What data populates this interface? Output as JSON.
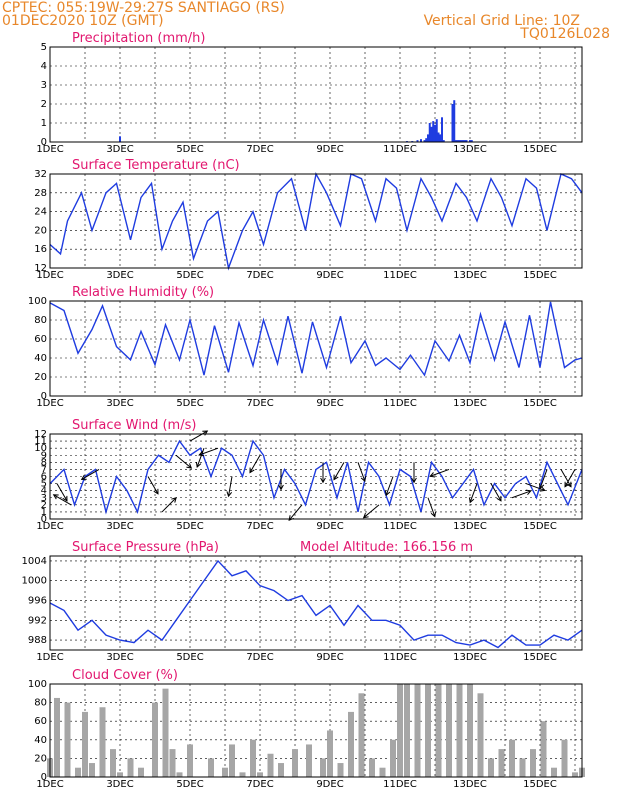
{
  "header": {
    "line1": "CPTEC:   055:19W-29:27S  SANTIAGO (RS)",
    "line2": "01DEC2020 10Z (GMT)",
    "grid_note": "Vertical Grid Line: 10Z",
    "code": "TQ0126L028"
  },
  "x_labels": [
    "1DEC",
    "3DEC",
    "5DEC",
    "7DEC",
    "9DEC",
    "11DEC",
    "13DEC",
    "15DEC"
  ],
  "colors": {
    "header": "#e8872a",
    "title": "#e2176f",
    "line": "#1f3ce0",
    "bar": "#1f3ce0",
    "cloud": "#a6a6a6",
    "arrow": "#000000"
  },
  "chart_data": [
    {
      "type": "bar",
      "title": "Precipitation (mm/h)",
      "ylim": [
        0,
        5
      ],
      "yticks": [
        0,
        1,
        2,
        3,
        4,
        5
      ],
      "x_unit": "days since 1DEC",
      "x": [
        2.0,
        10.2,
        10.35,
        10.5,
        10.6,
        10.7,
        10.75,
        10.8,
        10.85,
        10.9,
        10.95,
        11.0,
        11.05,
        11.1,
        11.15,
        11.2,
        11.25,
        11.5,
        11.55,
        11.6,
        11.65,
        11.7,
        11.75,
        11.8,
        11.85,
        11.9,
        12.0,
        12.05
      ],
      "values": [
        0.3,
        0.05,
        0.05,
        0.1,
        0.15,
        0.1,
        0.2,
        0.4,
        1.0,
        0.8,
        1.1,
        0.9,
        1.2,
        0.5,
        0.4,
        1.3,
        0.1,
        2.0,
        2.2,
        0.1,
        0.1,
        0.1,
        0.1,
        0.1,
        0.1,
        0.1,
        0.1,
        0.1
      ]
    },
    {
      "type": "line",
      "title": "Surface Temperature (nC)",
      "ylim": [
        12,
        32
      ],
      "yticks": [
        12,
        16,
        20,
        24,
        28,
        32
      ],
      "x": [
        0,
        0.3,
        0.5,
        0.9,
        1.2,
        1.6,
        1.9,
        2.3,
        2.6,
        2.9,
        3.2,
        3.5,
        3.8,
        4.1,
        4.5,
        4.8,
        5.1,
        5.5,
        5.8,
        6.1,
        6.5,
        6.9,
        7.3,
        7.6,
        7.9,
        8.3,
        8.6,
        8.9,
        9.3,
        9.6,
        9.9,
        10.2,
        10.6,
        10.9,
        11.2,
        11.6,
        11.9,
        12.2,
        12.6,
        12.9,
        13.2,
        13.6,
        13.9,
        14.2,
        14.6,
        14.9,
        15.2
      ],
      "values": [
        17,
        15,
        22,
        28,
        20,
        28,
        30,
        18,
        27,
        30,
        16,
        22,
        26,
        14,
        22,
        24,
        12,
        20,
        24,
        17,
        28,
        31,
        20,
        32,
        28,
        21,
        32,
        31,
        22,
        31,
        29,
        20,
        31,
        27,
        22,
        30,
        27,
        22,
        31,
        27,
        21,
        31,
        29,
        20,
        32,
        31,
        28
      ]
    },
    {
      "type": "line",
      "title": "Relative Humidity (%)",
      "ylim": [
        0,
        100
      ],
      "yticks": [
        0,
        20,
        40,
        60,
        80,
        100
      ],
      "x": [
        0,
        0.4,
        0.8,
        1.2,
        1.5,
        1.9,
        2.3,
        2.6,
        3.0,
        3.3,
        3.7,
        4.0,
        4.4,
        4.7,
        5.1,
        5.4,
        5.8,
        6.1,
        6.5,
        6.8,
        7.2,
        7.5,
        7.9,
        8.3,
        8.6,
        9.0,
        9.3,
        9.6,
        10.0,
        10.3,
        10.7,
        11.0,
        11.4,
        11.7,
        12.0,
        12.3,
        12.7,
        13.0,
        13.4,
        13.7,
        14.0,
        14.3,
        14.7,
        15.0,
        15.2
      ],
      "values": [
        98,
        90,
        45,
        70,
        95,
        52,
        38,
        68,
        33,
        75,
        38,
        80,
        22,
        74,
        25,
        77,
        32,
        80,
        34,
        84,
        24,
        78,
        30,
        84,
        35,
        58,
        32,
        40,
        28,
        43,
        22,
        58,
        37,
        64,
        35,
        86,
        38,
        78,
        30,
        85,
        30,
        99,
        30,
        38,
        40
      ]
    },
    {
      "type": "line",
      "title": "Surface Wind (m/s)",
      "ylim": [
        0,
        12
      ],
      "yticks": [
        0,
        1,
        2,
        3,
        4,
        5,
        6,
        7,
        8,
        9,
        10,
        11,
        12
      ],
      "x": [
        0,
        0.4,
        0.7,
        1.0,
        1.3,
        1.6,
        1.9,
        2.2,
        2.5,
        2.8,
        3.1,
        3.4,
        3.7,
        4.0,
        4.3,
        4.6,
        4.9,
        5.2,
        5.5,
        5.8,
        6.1,
        6.4,
        6.7,
        7.0,
        7.3,
        7.6,
        7.9,
        8.2,
        8.5,
        8.8,
        9.1,
        9.4,
        9.7,
        10.0,
        10.3,
        10.6,
        10.9,
        11.2,
        11.5,
        11.8,
        12.1,
        12.4,
        12.7,
        13.0,
        13.3,
        13.6,
        13.9,
        14.2,
        14.5,
        14.8,
        15.2
      ],
      "values": [
        5,
        7,
        2,
        6,
        7,
        1,
        6,
        4,
        1,
        7,
        9,
        8,
        11,
        9,
        10,
        6,
        10,
        9,
        6,
        11,
        9,
        3,
        7,
        5,
        2,
        7,
        8,
        3,
        8,
        1,
        8,
        6,
        2,
        7,
        6,
        1,
        8,
        6,
        3,
        5,
        7,
        2,
        5,
        3,
        5,
        6,
        3,
        8,
        5,
        2,
        7
      ],
      "wind_arrows": [
        {
          "x": 0.2,
          "dir": 300
        },
        {
          "x": 0.6,
          "dir": 150
        },
        {
          "x": 1.4,
          "dir": 210
        },
        {
          "x": 2.8,
          "dir": 300
        },
        {
          "x": 3.2,
          "dir": 45
        },
        {
          "x": 3.6,
          "dir": 320
        },
        {
          "x": 4.0,
          "dir": 30
        },
        {
          "x": 4.4,
          "dir": 250
        },
        {
          "x": 4.8,
          "dir": 200
        },
        {
          "x": 5.2,
          "dir": 260
        },
        {
          "x": 6.0,
          "dir": 240
        },
        {
          "x": 6.6,
          "dir": 270
        },
        {
          "x": 7.2,
          "dir": 230
        },
        {
          "x": 7.8,
          "dir": 270
        },
        {
          "x": 8.4,
          "dir": 240
        },
        {
          "x": 8.8,
          "dir": 290
        },
        {
          "x": 9.4,
          "dir": 220
        },
        {
          "x": 9.8,
          "dir": 250
        },
        {
          "x": 10.4,
          "dir": 270
        },
        {
          "x": 10.8,
          "dir": 290
        },
        {
          "x": 11.4,
          "dir": 200
        },
        {
          "x": 12.2,
          "dir": 250
        },
        {
          "x": 12.6,
          "dir": 300
        },
        {
          "x": 13.2,
          "dir": 20
        },
        {
          "x": 13.6,
          "dir": 340
        },
        {
          "x": 14.2,
          "dir": 250
        },
        {
          "x": 14.6,
          "dir": 300
        },
        {
          "x": 15.0,
          "dir": 240
        }
      ]
    },
    {
      "type": "line",
      "title": "Surface Pressure (hPa)",
      "annotation": "Model Altitude: 166.156  m",
      "ylim": [
        986,
        1005
      ],
      "yticks": [
        988,
        992,
        996,
        1000,
        1004
      ],
      "x": [
        0,
        0.4,
        0.8,
        1.2,
        1.6,
        2.0,
        2.4,
        2.8,
        3.2,
        3.6,
        4.0,
        4.4,
        4.8,
        5.2,
        5.6,
        6.0,
        6.4,
        6.8,
        7.2,
        7.6,
        8.0,
        8.4,
        8.8,
        9.2,
        9.6,
        10.0,
        10.4,
        10.8,
        11.2,
        11.6,
        12.0,
        12.4,
        12.8,
        13.2,
        13.6,
        14.0,
        14.4,
        14.8,
        15.2
      ],
      "values": [
        995.5,
        994,
        990,
        992,
        989,
        988,
        987.5,
        990,
        988,
        992,
        996,
        1000,
        1004,
        1001,
        1002,
        999,
        998,
        996,
        997,
        993,
        995,
        991,
        995,
        992,
        992,
        991,
        988,
        989,
        989,
        987.5,
        987,
        988,
        986.5,
        989,
        987,
        987,
        989,
        988,
        990
      ]
    },
    {
      "type": "area",
      "title": "Cloud Cover (%)",
      "ylim": [
        0,
        100
      ],
      "yticks": [
        0,
        20,
        40,
        60,
        80,
        100
      ],
      "x": [
        0,
        0.2,
        0.5,
        0.8,
        1.0,
        1.2,
        1.5,
        1.8,
        2.0,
        2.3,
        2.6,
        3.0,
        3.3,
        3.5,
        3.7,
        4.0,
        4.3,
        4.6,
        5.0,
        5.2,
        5.5,
        5.8,
        6.0,
        6.3,
        6.6,
        7.0,
        7.4,
        7.8,
        8.0,
        8.3,
        8.6,
        8.9,
        9.2,
        9.5,
        9.8,
        10.0,
        10.2,
        10.5,
        10.8,
        11.1,
        11.4,
        11.7,
        12.0,
        12.3,
        12.6,
        12.9,
        13.2,
        13.5,
        13.8,
        14.1,
        14.4,
        14.7,
        15.0,
        15.2
      ],
      "values": [
        20,
        85,
        80,
        10,
        70,
        15,
        75,
        30,
        5,
        20,
        10,
        80,
        95,
        30,
        5,
        35,
        0,
        20,
        10,
        35,
        5,
        40,
        5,
        25,
        15,
        30,
        35,
        20,
        50,
        15,
        70,
        90,
        20,
        10,
        40,
        100,
        100,
        100,
        100,
        100,
        100,
        100,
        100,
        90,
        20,
        30,
        40,
        20,
        30,
        60,
        10,
        40,
        5,
        10
      ]
    }
  ]
}
